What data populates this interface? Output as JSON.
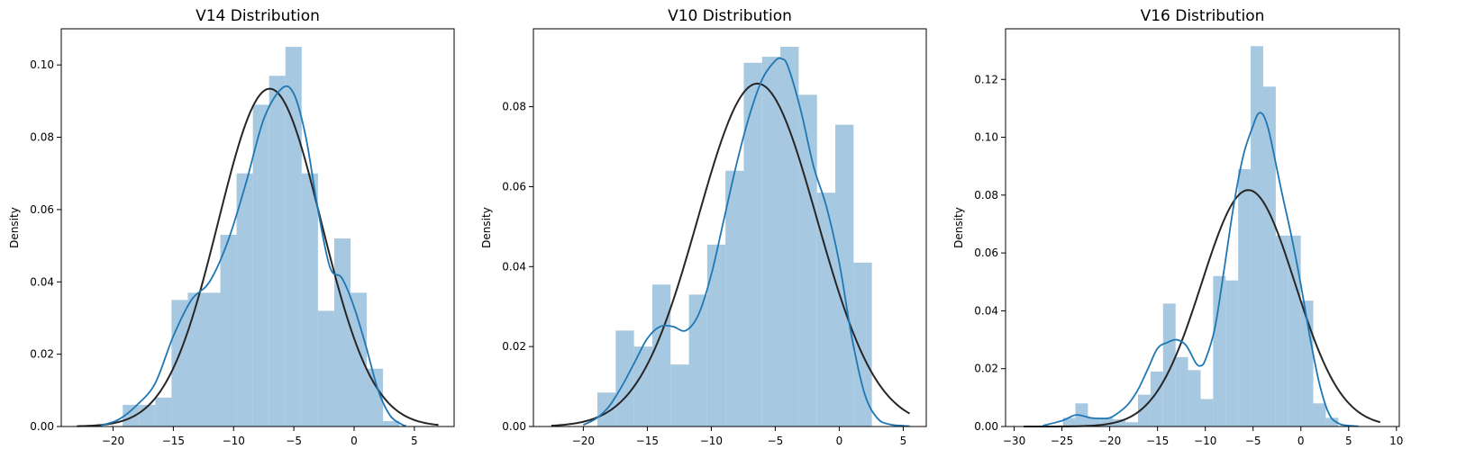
{
  "colors": {
    "hist_fill": "#a6c8e0",
    "kde_line": "#1f77b4",
    "normal_fit_line": "#262626",
    "axes": "#000000"
  },
  "chart_data": [
    {
      "type": "bar",
      "title": "V14 Distribution",
      "ylabel": "Density",
      "xlabel": "",
      "xlim": [
        -24.3,
        8.3
      ],
      "ylim": [
        0,
        0.11
      ],
      "xticks": [
        -20,
        -15,
        -10,
        -5,
        0,
        5
      ],
      "yticks": [
        0.0,
        0.02,
        0.04,
        0.06,
        0.08,
        0.1
      ],
      "ytick_labels": [
        "0.00",
        "0.02",
        "0.04",
        "0.06",
        "0.08",
        "0.10"
      ],
      "grid": false,
      "histogram": {
        "bin_start": -19.2,
        "bin_width": 1.35,
        "values": [
          0.006,
          0.006,
          0.008,
          0.035,
          0.037,
          0.037,
          0.053,
          0.07,
          0.089,
          0.097,
          0.105,
          0.07,
          0.032,
          0.052,
          0.037,
          0.016,
          0.0015
        ]
      },
      "kde": {
        "x": [
          -21,
          -19.5,
          -18,
          -16.5,
          -15,
          -13.5,
          -12,
          -10.5,
          -9,
          -7.5,
          -6,
          -5,
          -4,
          -3,
          -2,
          -1,
          0,
          1,
          2,
          3,
          4,
          4.3
        ],
        "y": [
          0.0003,
          0.002,
          0.006,
          0.012,
          0.025,
          0.035,
          0.04,
          0.051,
          0.067,
          0.085,
          0.0935,
          0.092,
          0.08,
          0.06,
          0.044,
          0.041,
          0.033,
          0.022,
          0.01,
          0.003,
          0.0005,
          0.0003
        ]
      },
      "normal_fit": {
        "mean": -7.0,
        "std": 4.27,
        "x_range": [
          -23.0,
          7.0
        ]
      }
    },
    {
      "type": "bar",
      "title": "V10 Distribution",
      "ylabel": "Density",
      "xlabel": "",
      "xlim": [
        -23.9,
        6.8
      ],
      "ylim": [
        0,
        0.0995
      ],
      "xticks": [
        -20,
        -15,
        -10,
        -5,
        0,
        5
      ],
      "yticks": [
        0.0,
        0.02,
        0.04,
        0.06,
        0.08
      ],
      "ytick_labels": [
        "0.00",
        "0.02",
        "0.04",
        "0.06",
        "0.08"
      ],
      "grid": false,
      "histogram": {
        "bin_start": -18.9,
        "bin_width": 1.43,
        "values": [
          0.0085,
          0.024,
          0.02,
          0.0355,
          0.0155,
          0.033,
          0.0455,
          0.064,
          0.091,
          0.0925,
          0.095,
          0.083,
          0.0585,
          0.0755,
          0.041
        ]
      },
      "kde": {
        "x": [
          -20,
          -19,
          -18,
          -17,
          -16,
          -15,
          -14,
          -13,
          -12,
          -11,
          -10,
          -9,
          -8,
          -7,
          -6,
          -5,
          -4.5,
          -4,
          -3,
          -2,
          -1,
          0,
          1,
          2,
          3,
          4,
          5,
          5.5
        ],
        "y": [
          0.0004,
          0.002,
          0.005,
          0.01,
          0.016,
          0.022,
          0.025,
          0.025,
          0.024,
          0.028,
          0.038,
          0.052,
          0.066,
          0.078,
          0.087,
          0.0915,
          0.092,
          0.09,
          0.079,
          0.065,
          0.055,
          0.041,
          0.022,
          0.008,
          0.002,
          0.0005,
          0.0002,
          0.0001
        ]
      },
      "normal_fit": {
        "mean": -6.4,
        "std": 4.65,
        "x_range": [
          -22.5,
          5.5
        ]
      }
    },
    {
      "type": "bar",
      "title": "V16 Distribution",
      "ylabel": "Density",
      "xlabel": "",
      "xlim": [
        -30.9,
        10.3
      ],
      "ylim": [
        0,
        0.1375
      ],
      "xticks": [
        -30,
        -25,
        -20,
        -15,
        -10,
        -5,
        0,
        5,
        10
      ],
      "yticks": [
        0.0,
        0.02,
        0.04,
        0.06,
        0.08,
        0.1,
        0.12
      ],
      "ytick_labels": [
        "0.00",
        "0.02",
        "0.04",
        "0.06",
        "0.08",
        "0.10",
        "0.12"
      ],
      "grid": false,
      "histogram": {
        "bin_start": -24.9,
        "bin_width": 1.31,
        "values": [
          0.003,
          0.008,
          0.003,
          0.003,
          0.0025,
          0.0015,
          0.011,
          0.019,
          0.0425,
          0.024,
          0.0195,
          0.0095,
          0.052,
          0.0505,
          0.089,
          0.1315,
          0.1175,
          0.066,
          0.066,
          0.0435,
          0.008,
          0.003
        ]
      },
      "kde": {
        "x": [
          -27,
          -25,
          -23.5,
          -22,
          -21,
          -20,
          -19,
          -18,
          -17,
          -16,
          -15,
          -14,
          -13,
          -12,
          -11,
          -10.5,
          -10,
          -9,
          -8,
          -7,
          -6,
          -5,
          -4.5,
          -4,
          -3.5,
          -3,
          -2,
          -1,
          0,
          1,
          2,
          3,
          4,
          5,
          6
        ],
        "y": [
          0.0003,
          0.002,
          0.004,
          0.003,
          0.0028,
          0.003,
          0.005,
          0.008,
          0.013,
          0.02,
          0.027,
          0.029,
          0.03,
          0.028,
          0.022,
          0.021,
          0.023,
          0.034,
          0.055,
          0.077,
          0.094,
          0.104,
          0.108,
          0.108,
          0.104,
          0.097,
          0.081,
          0.066,
          0.049,
          0.03,
          0.014,
          0.004,
          0.001,
          0.0003,
          0.0001
        ]
      },
      "normal_fit": {
        "mean": -5.5,
        "std": 4.88,
        "x_range": [
          -29.0,
          8.3
        ]
      }
    }
  ]
}
